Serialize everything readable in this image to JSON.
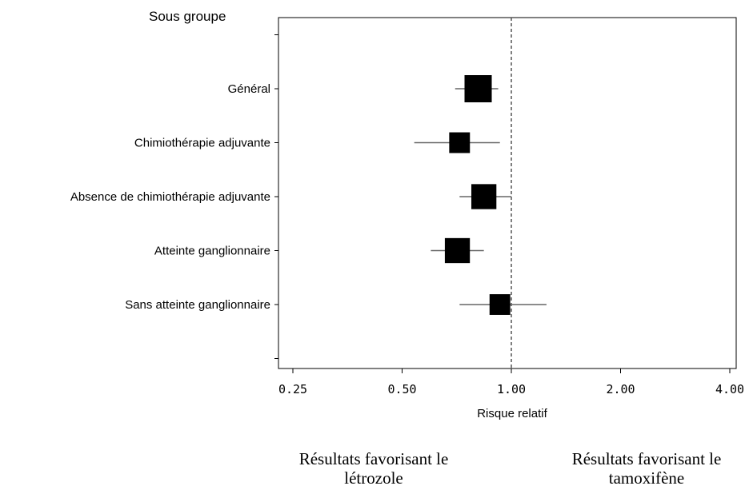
{
  "chart_data": {
    "type": "forest",
    "title": "Sous groupe",
    "xlabel": "Risque relatif",
    "x_scale": "log2",
    "xlim": [
      0.25,
      4.0
    ],
    "x_ticks": [
      "0.25",
      "0.50",
      "1.00",
      "2.00",
      "4.00"
    ],
    "reference_line": 1.0,
    "grid": false,
    "series": [
      {
        "label": "Général",
        "estimate": 0.81,
        "low": 0.7,
        "high": 0.92,
        "weight": 1.0
      },
      {
        "label": "Chimiothérapie adjuvante",
        "estimate": 0.72,
        "low": 0.54,
        "high": 0.93,
        "weight": 0.55
      },
      {
        "label": "Absence de chimiothérapie adjuvante",
        "estimate": 0.84,
        "low": 0.72,
        "high": 1.0,
        "weight": 0.85
      },
      {
        "label": "Atteinte ganglionnaire",
        "estimate": 0.71,
        "low": 0.6,
        "high": 0.84,
        "weight": 0.85
      },
      {
        "label": "Sans atteinte ganglionnaire",
        "estimate": 0.93,
        "low": 0.72,
        "high": 1.25,
        "weight": 0.55
      }
    ],
    "annotations": {
      "left": [
        "Résultats favorisant le",
        "létrozole"
      ],
      "right": [
        "Résultats favorisant le",
        "tamoxifène"
      ]
    }
  }
}
